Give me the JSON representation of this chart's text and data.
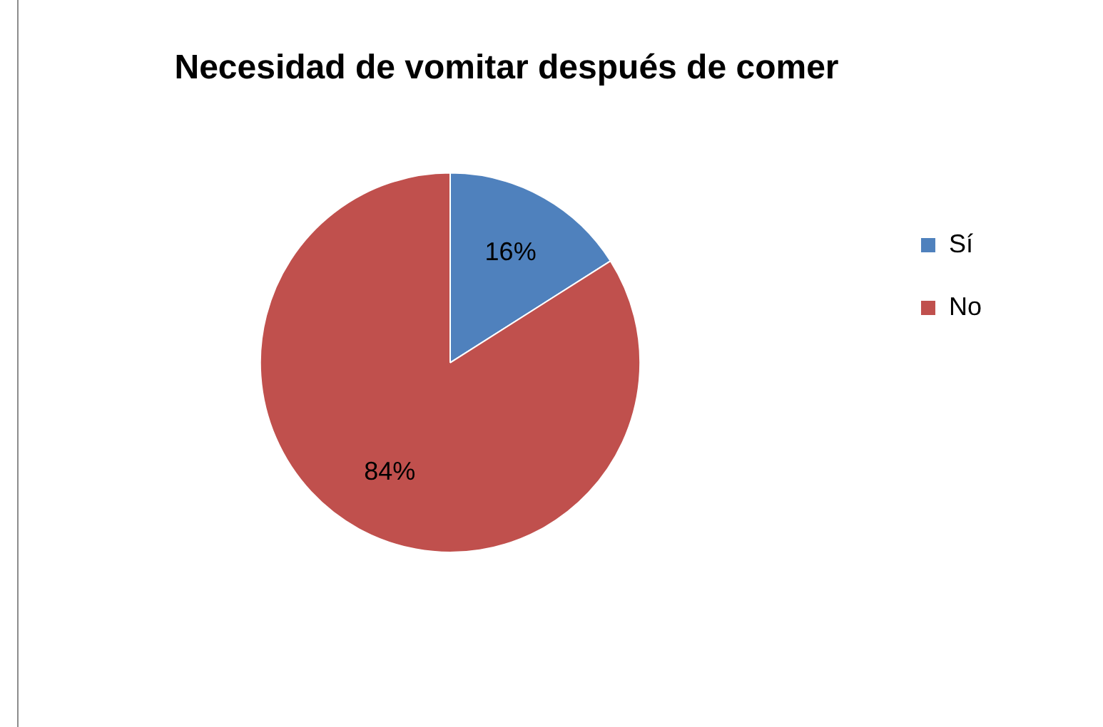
{
  "chart_data": {
    "type": "pie",
    "title": "Necesidad de vomitar después de comer",
    "categories": [
      "Sí",
      "No"
    ],
    "values": [
      16,
      84
    ],
    "colors": [
      "#4f81bd",
      "#c0504d"
    ],
    "value_labels": [
      "16%",
      "84%"
    ],
    "legend": "right"
  }
}
